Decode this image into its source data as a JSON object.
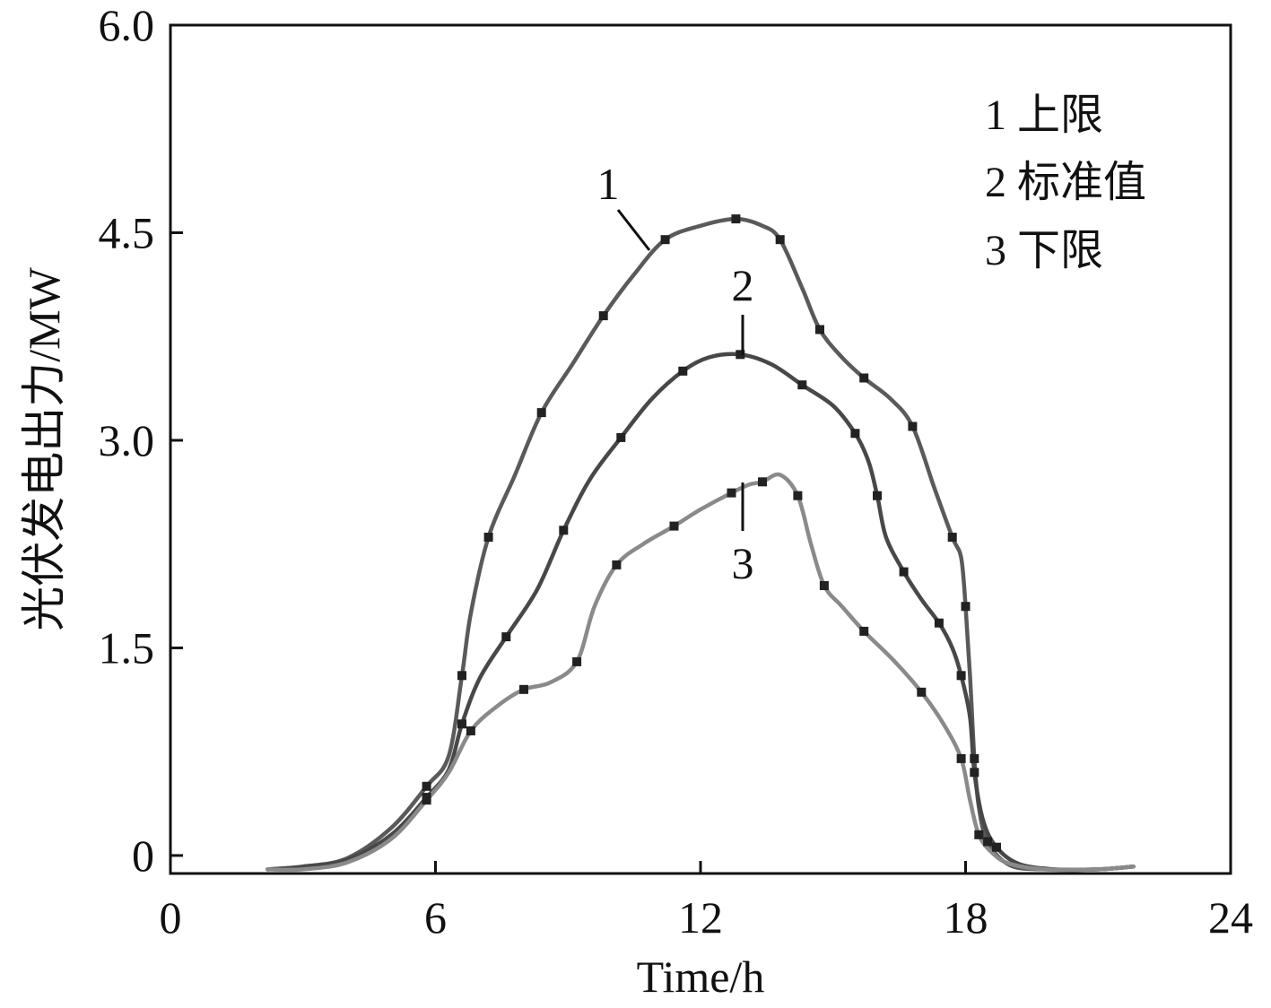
{
  "chart_data": {
    "type": "line",
    "title": "",
    "xlabel": "Time/h",
    "ylabel": "光伏发电出力/MW",
    "xlim": [
      0,
      24
    ],
    "ylim": [
      -0.13,
      6.0
    ],
    "x_ticks": [
      0,
      6,
      12,
      18,
      24
    ],
    "x_tick_labels": [
      "0",
      "6",
      "12",
      "18",
      "24"
    ],
    "y_ticks": [
      0,
      1.5,
      3.0,
      4.5,
      6.0
    ],
    "y_tick_labels": [
      "0",
      "1.5",
      "3.0",
      "4.5",
      "6.0"
    ],
    "grid": false,
    "legend_position": "top-right",
    "legend": [
      "1 上限",
      "2 标准值",
      "3 下限"
    ],
    "curve_labels": [
      "1",
      "2",
      "3"
    ],
    "series": [
      {
        "name": "上限",
        "color": "#5a5a5a",
        "x": [
          2.2,
          3.0,
          4.0,
          5.0,
          5.8,
          6.3,
          6.6,
          6.8,
          7.2,
          7.8,
          8.4,
          9.1,
          9.8,
          10.5,
          11.2,
          12.0,
          12.8,
          13.4,
          13.8,
          14.3,
          14.7,
          15.2,
          15.7,
          16.3,
          16.8,
          17.3,
          17.7,
          17.9,
          18.0,
          18.1,
          18.2,
          18.3,
          18.5,
          19.0,
          19.8,
          21.0,
          21.8
        ],
        "y": [
          -0.1,
          -0.08,
          -0.02,
          0.2,
          0.5,
          0.72,
          1.3,
          1.75,
          2.3,
          2.75,
          3.2,
          3.55,
          3.9,
          4.2,
          4.45,
          4.55,
          4.6,
          4.55,
          4.45,
          4.1,
          3.8,
          3.6,
          3.45,
          3.3,
          3.1,
          2.65,
          2.3,
          2.15,
          1.8,
          1.3,
          0.7,
          0.35,
          0.1,
          -0.07,
          -0.1,
          -0.1,
          -0.08
        ]
      },
      {
        "name": "标准值",
        "color": "#484848",
        "x": [
          2.2,
          3.0,
          4.0,
          5.0,
          5.8,
          6.3,
          6.6,
          7.0,
          7.6,
          8.3,
          8.9,
          9.5,
          10.2,
          10.9,
          11.6,
          12.2,
          12.9,
          13.6,
          14.3,
          15.0,
          15.5,
          15.8,
          16.0,
          16.2,
          16.6,
          17.0,
          17.4,
          17.7,
          17.9,
          18.1,
          18.2,
          18.4,
          18.7,
          19.2,
          20.0,
          21.0,
          21.8
        ],
        "y": [
          -0.1,
          -0.08,
          -0.03,
          0.15,
          0.42,
          0.62,
          0.95,
          1.28,
          1.58,
          1.92,
          2.35,
          2.72,
          3.02,
          3.3,
          3.5,
          3.6,
          3.62,
          3.55,
          3.4,
          3.25,
          3.05,
          2.85,
          2.6,
          2.3,
          2.05,
          1.85,
          1.68,
          1.5,
          1.3,
          1.0,
          0.6,
          0.25,
          0.06,
          -0.06,
          -0.1,
          -0.1,
          -0.08
        ]
      },
      {
        "name": "下限",
        "color": "#8a8a8a",
        "x": [
          2.2,
          3.0,
          4.0,
          5.0,
          5.8,
          6.3,
          6.8,
          7.4,
          8.0,
          8.6,
          9.2,
          9.6,
          10.1,
          10.7,
          11.4,
          12.0,
          12.7,
          13.1,
          13.4,
          13.8,
          14.2,
          14.5,
          14.8,
          15.2,
          15.7,
          16.4,
          17.0,
          17.5,
          17.9,
          18.1,
          18.3,
          18.6,
          19.0,
          19.8,
          21.0,
          21.8
        ],
        "y": [
          -0.1,
          -0.1,
          -0.05,
          0.12,
          0.4,
          0.6,
          0.9,
          1.08,
          1.2,
          1.25,
          1.4,
          1.8,
          2.1,
          2.25,
          2.38,
          2.5,
          2.62,
          2.68,
          2.7,
          2.75,
          2.6,
          2.25,
          1.95,
          1.8,
          1.62,
          1.4,
          1.18,
          0.95,
          0.7,
          0.4,
          0.15,
          0.02,
          -0.06,
          -0.1,
          -0.1,
          -0.08
        ]
      }
    ]
  }
}
